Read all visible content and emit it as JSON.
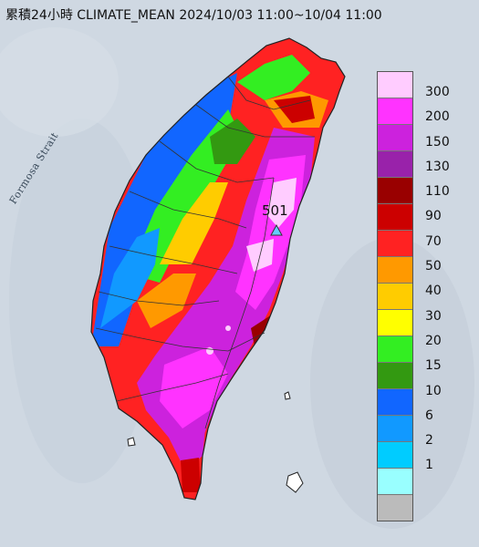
{
  "title": "累積24小時 CLIMATE_MEAN 2024/10/03 11:00~10/04 11:00",
  "strait_label": "Formosa Strait",
  "max_station": {
    "value": "501"
  },
  "legend": {
    "bins": [
      {
        "label": "300",
        "color": "#ffccff"
      },
      {
        "label": "200",
        "color": "#ff33ff"
      },
      {
        "label": "150",
        "color": "#cc22dd"
      },
      {
        "label": "130",
        "color": "#9922aa"
      },
      {
        "label": "110",
        "color": "#990000"
      },
      {
        "label": "90",
        "color": "#cc0000"
      },
      {
        "label": "70",
        "color": "#ff2222"
      },
      {
        "label": "50",
        "color": "#ff9900"
      },
      {
        "label": "40",
        "color": "#ffcc00"
      },
      {
        "label": "30",
        "color": "#ffff00"
      },
      {
        "label": "20",
        "color": "#33ee22"
      },
      {
        "label": "15",
        "color": "#339911"
      },
      {
        "label": "10",
        "color": "#1166ff"
      },
      {
        "label": "6",
        "color": "#1199ff"
      },
      {
        "label": "2",
        "color": "#00ccff"
      },
      {
        "label": "1",
        "color": "#99ffff"
      },
      {
        "label": "",
        "color": "#bbbbbb"
      }
    ]
  },
  "colors": {
    "sea": "#cfd8e2",
    "land_background": "#b7c6d4"
  }
}
